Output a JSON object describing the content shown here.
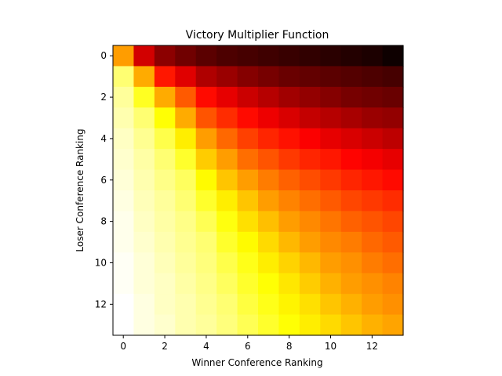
{
  "chart_data": {
    "type": "heatmap",
    "title": "Victory Multiplier Function",
    "xlabel": "Winner Conference Ranking",
    "ylabel": "Loser Conference Ranking",
    "x": [
      0,
      1,
      2,
      3,
      4,
      5,
      6,
      7,
      8,
      9,
      10,
      11,
      12,
      13
    ],
    "y": [
      0,
      1,
      2,
      3,
      4,
      5,
      6,
      7,
      8,
      9,
      10,
      11,
      12,
      13
    ],
    "xticks": [
      0,
      2,
      4,
      6,
      8,
      10,
      12
    ],
    "yticks": [
      0,
      2,
      4,
      6,
      8,
      10,
      12
    ],
    "y_axis_inverted": true,
    "colormap": "hot",
    "values": [
      [
        0.6,
        0.3,
        0.2,
        0.16,
        0.13,
        0.11,
        0.1,
        0.09,
        0.08,
        0.07,
        0.06,
        0.05,
        0.04,
        0.02
      ],
      [
        0.86,
        0.62,
        0.4,
        0.32,
        0.25,
        0.22,
        0.19,
        0.17,
        0.15,
        0.14,
        0.13,
        0.12,
        0.11,
        0.1
      ],
      [
        0.9,
        0.78,
        0.62,
        0.5,
        0.38,
        0.33,
        0.29,
        0.26,
        0.23,
        0.21,
        0.19,
        0.17,
        0.16,
        0.15
      ],
      [
        0.92,
        0.86,
        0.75,
        0.62,
        0.49,
        0.43,
        0.38,
        0.34,
        0.31,
        0.28,
        0.26,
        0.24,
        0.22,
        0.21
      ],
      [
        0.94,
        0.89,
        0.82,
        0.72,
        0.6,
        0.52,
        0.46,
        0.42,
        0.39,
        0.36,
        0.33,
        0.31,
        0.29,
        0.27
      ],
      [
        0.95,
        0.91,
        0.86,
        0.79,
        0.67,
        0.6,
        0.53,
        0.49,
        0.45,
        0.42,
        0.4,
        0.37,
        0.35,
        0.33
      ],
      [
        0.96,
        0.92,
        0.88,
        0.84,
        0.74,
        0.66,
        0.6,
        0.55,
        0.51,
        0.48,
        0.45,
        0.42,
        0.4,
        0.38
      ],
      [
        0.97,
        0.93,
        0.9,
        0.86,
        0.79,
        0.72,
        0.66,
        0.6,
        0.56,
        0.53,
        0.5,
        0.47,
        0.45,
        0.43
      ],
      [
        0.98,
        0.94,
        0.91,
        0.88,
        0.83,
        0.76,
        0.7,
        0.65,
        0.6,
        0.57,
        0.54,
        0.51,
        0.49,
        0.47
      ],
      [
        0.98,
        0.95,
        0.92,
        0.89,
        0.86,
        0.79,
        0.74,
        0.69,
        0.64,
        0.6,
        0.57,
        0.55,
        0.52,
        0.5
      ],
      [
        0.99,
        0.96,
        0.93,
        0.9,
        0.87,
        0.82,
        0.77,
        0.72,
        0.68,
        0.64,
        0.6,
        0.58,
        0.55,
        0.53
      ],
      [
        0.99,
        0.96,
        0.94,
        0.91,
        0.88,
        0.84,
        0.79,
        0.75,
        0.71,
        0.67,
        0.63,
        0.6,
        0.58,
        0.56
      ],
      [
        1.0,
        0.97,
        0.94,
        0.92,
        0.89,
        0.86,
        0.81,
        0.77,
        0.73,
        0.7,
        0.66,
        0.63,
        0.6,
        0.58
      ],
      [
        1.0,
        0.97,
        0.95,
        0.92,
        0.9,
        0.87,
        0.83,
        0.79,
        0.75,
        0.72,
        0.69,
        0.66,
        0.63,
        0.61
      ]
    ]
  }
}
